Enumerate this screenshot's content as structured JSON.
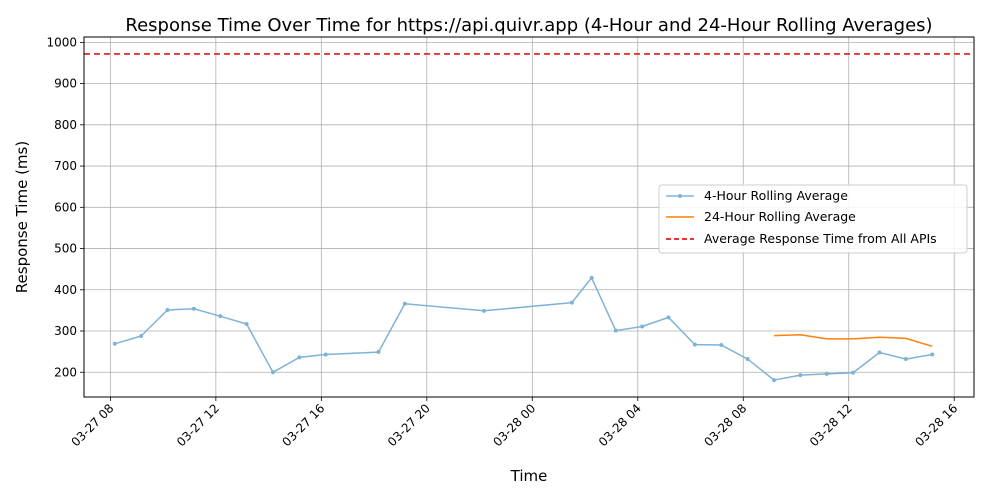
{
  "chart_data": {
    "type": "line",
    "title": "Response Time Over Time for https://api.quivr.app (4-Hour and 24-Hour Rolling Averages)",
    "xlabel": "Time",
    "ylabel": "Response Time (ms)",
    "x_tick_labels": [
      "03-27 08",
      "03-27 12",
      "03-27 16",
      "03-27 20",
      "03-28 00",
      "03-28 04",
      "03-28 08",
      "03-28 12",
      "03-28 16"
    ],
    "x_tick_values": [
      "2024-03-27T08:00",
      "2024-03-27T12:00",
      "2024-03-27T16:00",
      "2024-03-27T20:00",
      "2024-03-28T00:00",
      "2024-03-28T04:00",
      "2024-03-28T08:00",
      "2024-03-28T12:00",
      "2024-03-28T16:00"
    ],
    "x_range": [
      "2024-03-27T07:00",
      "2024-03-28T16:45"
    ],
    "ylim": [
      140,
      1013
    ],
    "y_ticks": [
      200,
      300,
      400,
      500,
      600,
      700,
      800,
      900,
      1000
    ],
    "grid": true,
    "legend_position": "center-right",
    "series": [
      {
        "name": "4-Hour Rolling Average",
        "color": "#7fb3d5",
        "marker": "dot",
        "points": [
          [
            "2024-03-27T08:10",
            269
          ],
          [
            "2024-03-27T09:10",
            288
          ],
          [
            "2024-03-27T10:10",
            351
          ],
          [
            "2024-03-27T11:10",
            354
          ],
          [
            "2024-03-27T12:10",
            336
          ],
          [
            "2024-03-27T13:10",
            317
          ],
          [
            "2024-03-27T14:10",
            200
          ],
          [
            "2024-03-27T15:10",
            236
          ],
          [
            "2024-03-27T16:10",
            243
          ],
          [
            "2024-03-27T18:10",
            249
          ],
          [
            "2024-03-27T19:10",
            366
          ],
          [
            "2024-03-27T22:10",
            349
          ],
          [
            "2024-03-28T01:30",
            369
          ],
          [
            "2024-03-28T02:15",
            429
          ],
          [
            "2024-03-28T03:10",
            301
          ],
          [
            "2024-03-28T04:10",
            311
          ],
          [
            "2024-03-28T05:10",
            333
          ],
          [
            "2024-03-28T06:10",
            267
          ],
          [
            "2024-03-28T07:10",
            266
          ],
          [
            "2024-03-28T08:10",
            232
          ],
          [
            "2024-03-28T09:10",
            181
          ],
          [
            "2024-03-28T10:10",
            193
          ],
          [
            "2024-03-28T11:10",
            196
          ],
          [
            "2024-03-28T12:10",
            199
          ],
          [
            "2024-03-28T13:10",
            248
          ],
          [
            "2024-03-28T14:10",
            232
          ],
          [
            "2024-03-28T15:10",
            243
          ]
        ]
      },
      {
        "name": "24-Hour Rolling Average",
        "color": "#ff7f0e",
        "marker": "none",
        "points": [
          [
            "2024-03-28T09:10",
            289
          ],
          [
            "2024-03-28T10:10",
            291
          ],
          [
            "2024-03-28T11:10",
            281
          ],
          [
            "2024-03-28T12:10",
            281
          ],
          [
            "2024-03-28T13:10",
            285
          ],
          [
            "2024-03-28T14:10",
            282
          ],
          [
            "2024-03-28T15:10",
            263
          ]
        ]
      },
      {
        "name": "Average Response Time from All APIs",
        "color": "#e41a1c",
        "style": "dashed",
        "hline": 972
      }
    ]
  }
}
